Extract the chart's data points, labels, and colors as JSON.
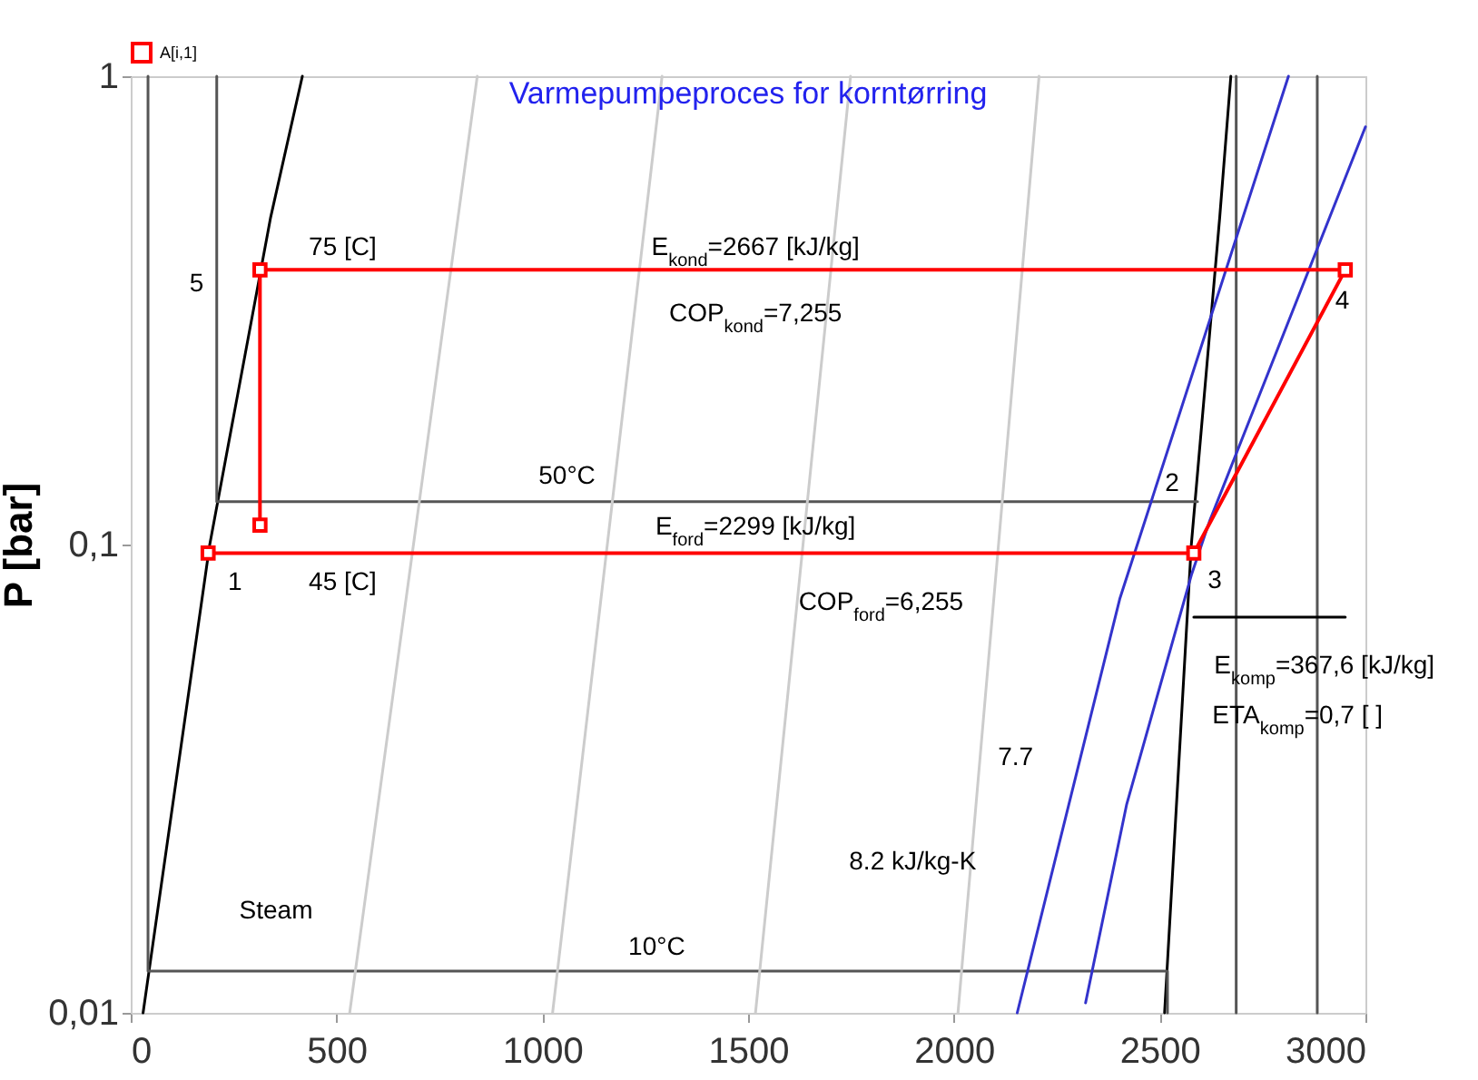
{
  "chart_data": {
    "type": "line",
    "title": "Varmepumpeproces for korntørring",
    "ylabel": "P [bar]",
    "log": "y",
    "xlim": [
      0,
      3000
    ],
    "xticks": [
      0,
      500,
      1000,
      1500,
      2000,
      2500,
      3000
    ],
    "ylim": [
      0.01,
      1
    ],
    "yticks": [
      {
        "value": 0.01,
        "label": "0,01"
      },
      {
        "value": 0.1,
        "label": "0,1"
      },
      1
    ],
    "grid": false,
    "legend": "top left",
    "marker": "none",
    "series": [
      {
        "color": "#000000",
        "x": [
          30,
          192,
          340,
          417
        ],
        "values": [
          0.01,
          0.1,
          0.5,
          1
        ]
      },
      {
        "color": "#000000",
        "x": [
          2512,
          2577,
          2646,
          2673
        ],
        "values": [
          0.01,
          0.1,
          0.5,
          1
        ]
      },
      {
        "color": "#555555",
        "x": [
          42,
          42,
          2519,
          2519
        ],
        "values": [
          1,
          0.01228,
          0.01228,
          0.01
        ]
      },
      {
        "color": "#555555",
        "x": [
          209,
          209,
          2592
        ],
        "values": [
          1,
          0.1235,
          0.1235
        ]
      },
      {
        "color": "#555555",
        "x": [
          2686,
          2686
        ],
        "values": [
          0.01,
          1
        ]
      },
      {
        "color": "#555555",
        "x": [
          2883,
          2883
        ],
        "values": [
          0.01,
          1
        ]
      },
      {
        "color": "#cccccc",
        "x": [
          532,
          842
        ],
        "values": [
          0.01,
          1
        ]
      },
      {
        "color": "#cccccc",
        "x": [
          1025,
          1291
        ],
        "values": [
          0.01,
          1
        ]
      },
      {
        "color": "#cccccc",
        "x": [
          1518,
          1749
        ],
        "values": [
          0.01,
          1
        ]
      },
      {
        "color": "#cccccc",
        "x": [
          2010,
          2207
        ],
        "values": [
          0.01,
          1
        ]
      },
      {
        "color": "#3333cc",
        "x": [
          2154,
          2403,
          2813
        ],
        "values": [
          0.01,
          0.0765,
          1
        ]
      },
      {
        "color": "#3333cc",
        "x": [
          2320,
          2420,
          2577,
          2621,
          3000
        ],
        "values": [
          0.0105,
          0.0279,
          0.086,
          0.112,
          0.78
        ]
      },
      {
        "color": "#000000",
        "x": [
          2583,
          2951
        ],
        "values": [
          0.07,
          0.07
        ]
      },
      {
        "name": "A[i,1]",
        "color": "#ff0000",
        "marker": "square",
        "x": [
          188,
          2583,
          2951,
          314,
          314
        ],
        "values": [
          0.0959,
          0.0959,
          0.386,
          0.386,
          0.11
        ]
      }
    ],
    "annotations": [
      "75 [C]",
      "E$_{kond}$=2667 [kJ/kg]",
      "COP$_{kond}$=7,255",
      "45 [C]",
      "E$_{ford}$=2299 [kJ/kg]",
      "COP$_{ford}$=6,255",
      "1",
      "5",
      "2",
      "3",
      "4",
      "50°C",
      "10°C",
      "Steam",
      "7.7",
      "8.2 kJ/kg-K",
      "E$_{komp}$=367,6 [kJ/kg]",
      "ETA$_{komp}$=0,7 [ ]"
    ]
  }
}
